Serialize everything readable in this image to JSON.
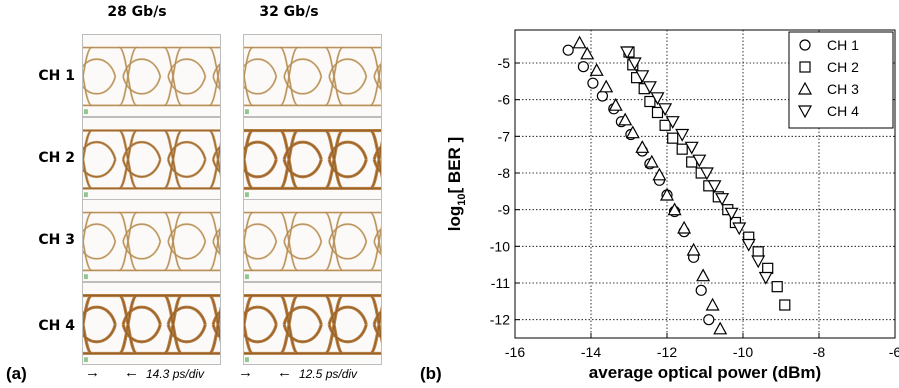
{
  "panel_a": {
    "label": "(a)",
    "columns": [
      "28 Gb/s",
      "32 Gb/s"
    ],
    "rows": [
      "CH 1",
      "CH 2",
      "CH 3",
      "CH 4"
    ],
    "scale_28": "14.3 ps/div",
    "scale_32": "12.5 ps/div",
    "eye_intensity": [
      [
        1,
        1
      ],
      [
        2,
        3
      ],
      [
        1,
        1
      ],
      [
        3,
        3
      ]
    ],
    "colors": {
      "eye_light": "#c9a36a",
      "eye_dark": "#a8651e",
      "background": "#fbfaf8"
    }
  },
  "panel_b": {
    "label": "(b)"
  },
  "chart_data": {
    "type": "scatter",
    "xlabel": "average optical power (dBm)",
    "ylabel": "log",
    "ylabel_sub": "10",
    "ylabel_rest": "[ BER ]",
    "xlim": [
      -16,
      -6
    ],
    "ylim": [
      -12.5,
      -4.1
    ],
    "xticks": [
      -16,
      -14,
      -12,
      -10,
      -8,
      -6
    ],
    "xtick_labels": [
      "-16",
      "-14",
      "-12",
      "-10",
      "-8",
      "-6"
    ],
    "yticks": [
      -5,
      -6,
      -7,
      -8,
      -9,
      -10,
      -11,
      -12
    ],
    "ytick_labels": [
      "-5",
      "-6",
      "-7",
      "-8",
      "-9",
      "-10",
      "-11",
      "-12"
    ],
    "grid": true,
    "legend_position": "top-right",
    "series": [
      {
        "name": "CH 1",
        "marker": "circle",
        "x": [
          -14.6,
          -14.2,
          -13.95,
          -13.7,
          -13.4,
          -13.2,
          -12.95,
          -12.65,
          -12.45,
          -12.2,
          -12.0,
          -11.8,
          -11.55,
          -11.3,
          -11.1,
          -10.9
        ],
        "y": [
          -4.65,
          -5.1,
          -5.55,
          -5.9,
          -6.25,
          -6.6,
          -6.95,
          -7.4,
          -7.75,
          -8.2,
          -8.6,
          -9.05,
          -9.6,
          -10.3,
          -11.2,
          -12.0
        ]
      },
      {
        "name": "CH 2",
        "marker": "square",
        "x": [
          -13.0,
          -12.9,
          -12.8,
          -12.6,
          -12.45,
          -12.25,
          -12.05,
          -11.85,
          -11.6,
          -11.35,
          -11.1,
          -10.9,
          -10.65,
          -10.4,
          -10.2,
          -9.85,
          -9.6,
          -9.35,
          -9.1,
          -8.9
        ],
        "y": [
          -4.7,
          -5.05,
          -5.4,
          -5.7,
          -6.05,
          -6.35,
          -6.7,
          -7.05,
          -7.35,
          -7.7,
          -8.0,
          -8.35,
          -8.65,
          -9.0,
          -9.35,
          -9.75,
          -10.15,
          -10.6,
          -11.1,
          -11.6
        ]
      },
      {
        "name": "CH 3",
        "marker": "triangle-up",
        "x": [
          -14.3,
          -14.1,
          -13.85,
          -13.6,
          -13.35,
          -13.1,
          -12.9,
          -12.65,
          -12.4,
          -12.2,
          -12.0,
          -11.8,
          -11.55,
          -11.3,
          -11.05,
          -10.8,
          -10.6
        ],
        "y": [
          -4.45,
          -4.75,
          -5.2,
          -5.65,
          -6.15,
          -6.55,
          -6.9,
          -7.3,
          -7.7,
          -8.05,
          -8.6,
          -9.0,
          -9.5,
          -10.1,
          -10.8,
          -11.6,
          -12.25
        ]
      },
      {
        "name": "CH 4",
        "marker": "triangle-down",
        "x": [
          -13.05,
          -12.85,
          -12.65,
          -12.45,
          -12.25,
          -12.05,
          -11.85,
          -11.6,
          -11.35,
          -11.15,
          -10.95,
          -10.75,
          -10.55,
          -10.3,
          -10.1,
          -9.85,
          -9.6,
          -9.4
        ],
        "y": [
          -4.7,
          -5.0,
          -5.35,
          -5.65,
          -5.95,
          -6.25,
          -6.6,
          -6.95,
          -7.3,
          -7.65,
          -8.0,
          -8.35,
          -8.7,
          -9.1,
          -9.5,
          -9.95,
          -10.4,
          -10.85
        ]
      }
    ]
  }
}
